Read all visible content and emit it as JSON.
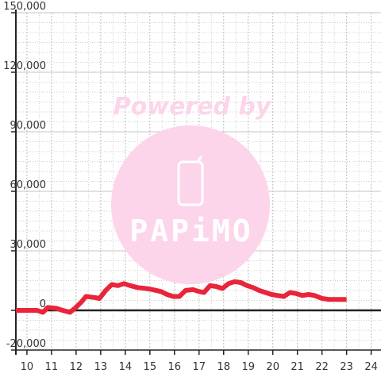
{
  "chart_data": {
    "type": "line",
    "x_ticks": [
      "10",
      "11",
      "12",
      "13",
      "14",
      "15",
      "16",
      "17",
      "18",
      "19",
      "20",
      "21",
      "22",
      "23",
      "24"
    ],
    "y_ticks": [
      "-20,000",
      "0",
      "30,000",
      "60,000",
      "90,000",
      "120,000",
      "150,000"
    ],
    "xlim": [
      9.55,
      24.4
    ],
    "ylim": [
      -20000,
      150000
    ],
    "y_minor_step": 5000,
    "x_minor_step": 0.5,
    "grid": true,
    "series": [
      {
        "x": [
          9.55,
          10.0,
          10.4,
          10.65,
          10.85,
          11.2,
          11.45,
          11.75,
          11.95,
          12.2,
          12.4,
          12.75,
          12.95,
          13.2,
          13.45,
          13.7,
          13.95,
          14.2,
          14.5,
          14.85,
          15.1,
          15.45,
          15.7,
          15.95,
          16.2,
          16.45,
          16.75,
          17.0,
          17.2,
          17.45,
          17.7,
          17.95,
          18.2,
          18.45,
          18.7,
          18.95,
          19.2,
          19.45,
          19.7,
          19.95,
          20.2,
          20.45,
          20.7,
          20.95,
          21.2,
          21.45,
          21.7,
          22.0,
          22.3,
          22.6,
          23.0
        ],
        "y": [
          0,
          0,
          0,
          -1000,
          1500,
          1000,
          0,
          -1000,
          1000,
          4000,
          7000,
          6500,
          6000,
          10000,
          13000,
          12500,
          13500,
          12500,
          11500,
          11000,
          10500,
          9500,
          8000,
          7000,
          7000,
          10000,
          10500,
          9500,
          9000,
          12500,
          12000,
          11000,
          13500,
          14500,
          14000,
          12500,
          11500,
          10000,
          9000,
          8000,
          7500,
          7000,
          9000,
          8500,
          7500,
          8000,
          7500,
          6000,
          5500,
          5500,
          5500
        ],
        "color": "#e8253a"
      }
    ]
  },
  "watermark": {
    "powered_by": "Powered by",
    "brand": "PAPiMO",
    "circle_color": "#fcd5ea",
    "text_color": "#fcd5ea",
    "logo_color": "#ffffff",
    "icon": "phone-icon"
  },
  "colors": {
    "grid": "#cfcfcf",
    "axis": "#222222",
    "background": "#ffffff"
  }
}
